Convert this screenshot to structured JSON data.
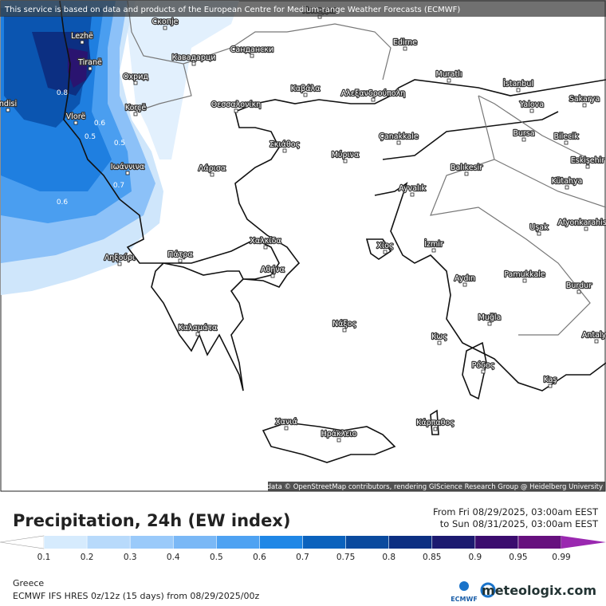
{
  "header": {
    "notice": "This service is based on data and products of the European Centre for Medium-range Weather Forecasts (ECMWF)"
  },
  "map": {
    "cities": [
      "Пловдив",
      "Lezhë",
      "Tiranë",
      "Скопје",
      "Кавадарци",
      "Сандански",
      "Охрид",
      "ndisi",
      "Korçë",
      "Vlorë",
      "Θεσσαλονίκη",
      "Καβάλα",
      "Αλεξανδρούπολη",
      "Edirne",
      "Muratlı",
      "İstanbul",
      "Sakarya",
      "Yalova",
      "Bursa",
      "Bilecik",
      "Eskişehir",
      "Çanakkale",
      "Balıkesir",
      "Kütahya",
      "Ιωάννινα",
      "Λάρισα",
      "Σκιάθος",
      "Μύρινα",
      "Ayvalık",
      "Uşak",
      "Afyonkarahisar",
      "Χαλκίδα",
      "Χίος",
      "İzmir",
      "Ληξούρι",
      "Πάτρα",
      "Αθήνα",
      "Aydın",
      "Pamukkale",
      "Burdur",
      "Καλαμάτα",
      "Νάξος",
      "Muğla",
      "Κως",
      "Antalya",
      "Ρόδος",
      "Kaş",
      "Χανιά",
      "Ηράκλειο",
      "Κάρπαθος"
    ],
    "contour_labels": [
      0.8,
      0.6,
      0.5,
      0.5,
      0.7,
      0.6
    ],
    "credit": "Map data © OpenStreetMap contributors, rendering GIScience Research Group @ Heidelberg University"
  },
  "legend": {
    "title": "Precipitation, 24h (EW index)",
    "period_from": "From Fri 08/29/2025, 03:00am EEST",
    "period_to": "to Sun 08/31/2025, 03:00am EEST",
    "ticks": [
      0.1,
      0.2,
      0.3,
      0.4,
      0.5,
      0.6,
      0.7,
      0.75,
      0.8,
      0.85,
      0.9,
      0.95,
      0.99
    ],
    "colors": [
      "#ffffff",
      "#d6ebfd",
      "#b8dafb",
      "#9acafa",
      "#7ab8f6",
      "#4ea2f2",
      "#1f87e6",
      "#0b62bd",
      "#0a4a9e",
      "#0c2f82",
      "#1c1a70",
      "#3b0c6e",
      "#66107e",
      "#9a28b0"
    ]
  },
  "footer": {
    "region": "Greece",
    "model": "ECMWF IFS HRES 0z/12z (15 days) from  08/29/2025/00z",
    "logo_small": "ECMWF",
    "brand": "meteologix.com"
  }
}
